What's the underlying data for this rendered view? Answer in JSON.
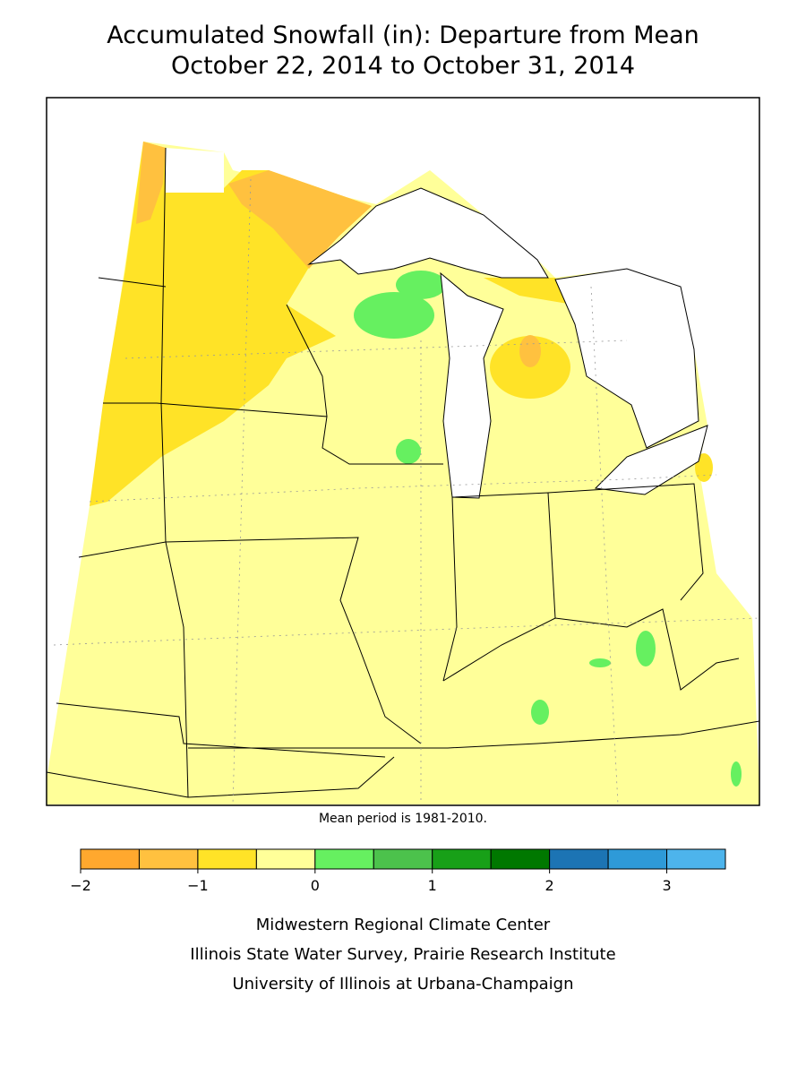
{
  "header": {
    "title_lines": [
      "Accumulated Snowfall (in): Departure from Mean",
      "October 22, 2014 to October 31, 2014"
    ]
  },
  "note": "Mean period is 1981-2010.",
  "legend": {
    "bins": [
      -2,
      -1.5,
      -1,
      -0.5,
      0,
      0.5,
      1,
      1.5,
      2,
      2.5,
      3,
      3.5
    ],
    "colors": [
      "#ffa82e",
      "#ffc13f",
      "#ffe327",
      "#ffff99",
      "#66f060",
      "#4cc24c",
      "#18a018",
      "#007800",
      "#1c74b4",
      "#2e9ad8",
      "#4db4ec"
    ],
    "ticks": [
      {
        "value": -2,
        "label": "−2"
      },
      {
        "value": -1,
        "label": "−1"
      },
      0,
      1,
      2,
      3
    ]
  },
  "footer": {
    "lines": [
      "Midwestern Regional Climate Center",
      "Illinois State Water Survey, Prairie Research Institute",
      "University of Illinois at Urbana-Champaign"
    ]
  }
}
